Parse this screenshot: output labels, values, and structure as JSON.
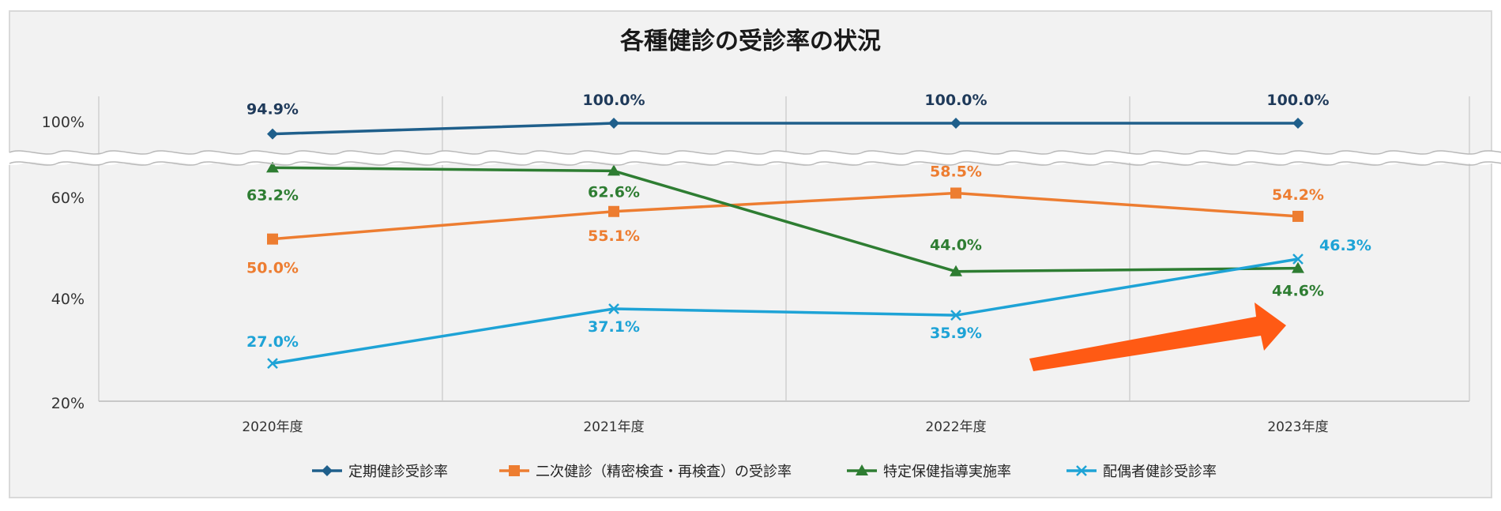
{
  "chart_data": {
    "type": "line",
    "title": "各種健診の受診率の状況",
    "categories": [
      "2020年度",
      "2021年度",
      "2022年度",
      "2023年度"
    ],
    "y_tick_labels": [
      "100%",
      "60%",
      "40%",
      "20%"
    ],
    "y_axis_break": "between 60% and 100%",
    "ylim": [
      20,
      100
    ],
    "grid": "vertical",
    "legend_position": "bottom",
    "series": [
      {
        "name": "定期健診受診率",
        "values": [
          94.9,
          100.0,
          100.0,
          100.0
        ],
        "labels": [
          "94.9%",
          "100.0%",
          "100.0%",
          "100.0%"
        ],
        "color": "#1f5f8b",
        "marker": "diamond"
      },
      {
        "name": "二次健診（精密検査・再検査）の受診率",
        "values": [
          50.0,
          55.1,
          58.5,
          54.2
        ],
        "labels": [
          "50.0%",
          "55.1%",
          "58.5%",
          "54.2%"
        ],
        "color": "#ed7d31",
        "marker": "square"
      },
      {
        "name": "特定保健指導実施率",
        "values": [
          63.2,
          62.6,
          44.0,
          44.6
        ],
        "labels": [
          "63.2%",
          "62.6%",
          "44.0%",
          "44.6%"
        ],
        "color": "#2e7d32",
        "marker": "triangle"
      },
      {
        "name": "配偶者健診受診率",
        "values": [
          27.0,
          37.1,
          35.9,
          46.3
        ],
        "labels": [
          "27.0%",
          "37.1%",
          "35.9%",
          "46.3%"
        ],
        "color": "#1ea3d6",
        "marker": "x"
      }
    ],
    "annotation": {
      "type": "arrow",
      "color": "#ff5a14",
      "direction": "up-right"
    }
  }
}
